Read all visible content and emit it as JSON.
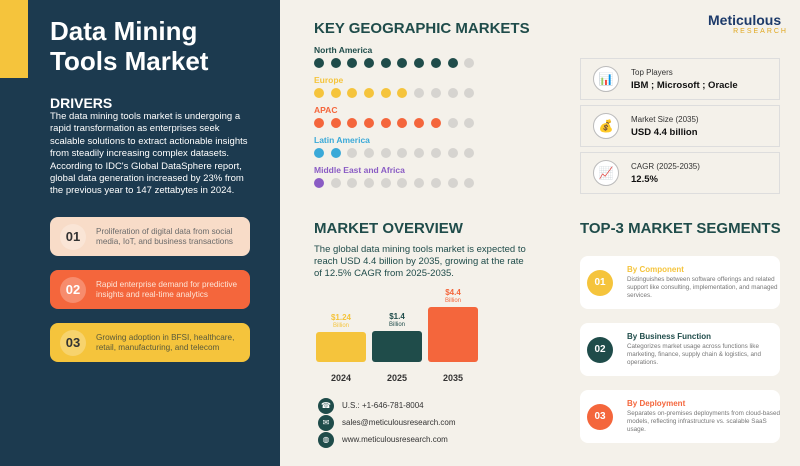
{
  "title": "Data Mining Tools Market",
  "drivers": {
    "heading": "DRIVERS",
    "text": " The data mining tools market is undergoing a rapid transformation as enterprises seek scalable solutions to extract actionable insights from steadily increasing complex datasets. According to IDC's Global DataSphere report, global data generation increased by 23% from the previous year to 147 zettabytes in 2024.",
    "items": [
      {
        "num": "01",
        "text": "Proliferation of digital data from social media, IoT, and business transactions",
        "bg": "#f8dcc8",
        "fg": "#6b6b6b"
      },
      {
        "num": "02",
        "text": "Rapid enterprise demand for predictive insights and real-time analytics",
        "bg": "#f4663c",
        "fg": "#fde4d6"
      },
      {
        "num": "03",
        "text": "Growing adoption in BFSI, healthcare, retail, manufacturing, and telecom",
        "bg": "#f5c43c",
        "fg": "#5a5a3a"
      }
    ]
  },
  "geo": {
    "heading": "KEY GEOGRAPHIC MARKETS",
    "regions": [
      {
        "name": "North America",
        "filled": 9,
        "of": 10,
        "color": "#1f4c4a"
      },
      {
        "name": "Europe",
        "filled": 6,
        "of": 10,
        "color": "#f5c43c"
      },
      {
        "name": "APAC",
        "filled": 8,
        "of": 10,
        "color": "#f4663c"
      },
      {
        "name": "Latin America",
        "filled": 2,
        "of": 10,
        "color": "#3aa9d8"
      },
      {
        "name": "Middle East and Africa",
        "filled": 1,
        "of": 10,
        "color": "#8a5cc4"
      }
    ]
  },
  "logo": {
    "name": "Meticulous",
    "sub": "RESEARCH"
  },
  "stats": [
    {
      "icon": "bar-chart-icon",
      "label": "Top Players",
      "value": "IBM ; Microsoft ; Oracle"
    },
    {
      "icon": "money-bag-icon",
      "label": "Market Size (2035)",
      "value": "USD 4.4 billion"
    },
    {
      "icon": "line-chart-icon",
      "label": "CAGR (2025-2035)",
      "value": "12.5%"
    }
  ],
  "overview": {
    "heading": "MARKET OVERVIEW",
    "text": "The global data mining tools market is expected to reach USD 4.4 billion by 2035, growing at the rate of 12.5% CAGR from 2025-2035."
  },
  "chart_data": {
    "type": "bar",
    "categories": [
      "2024",
      "2025",
      "2035"
    ],
    "values": [
      1.24,
      1.4,
      4.4
    ],
    "labels": [
      "$1.24",
      "$1.4",
      "$4.4"
    ],
    "unit": "Billion",
    "colors": [
      "#f5c43c",
      "#1f4c4a",
      "#f4663c"
    ]
  },
  "contact": [
    {
      "icon": "phone-icon",
      "text": "U.S.: +1-646-781-8004"
    },
    {
      "icon": "email-icon",
      "text": "sales@meticulousresearch.com"
    },
    {
      "icon": "globe-icon",
      "text": "www.meticulousresearch.com"
    }
  ],
  "segments": {
    "heading": "TOP-3 MARKET SEGMENTS",
    "items": [
      {
        "num": "01",
        "title": "By Component",
        "desc": "Distinguishes between software offerings and related support like consulting, implementation, and managed services.",
        "color": "#f5c43c"
      },
      {
        "num": "02",
        "title": "By Business Function",
        "desc": "Categorizes market usage across functions like marketing, finance, supply chain & logistics, and operations.",
        "color": "#1f4c4a"
      },
      {
        "num": "03",
        "title": "By Deployment",
        "desc": "Separates on-premises deployments from cloud-based models, reflecting infrastructure vs. scalable SaaS usage.",
        "color": "#f4663c"
      }
    ]
  }
}
